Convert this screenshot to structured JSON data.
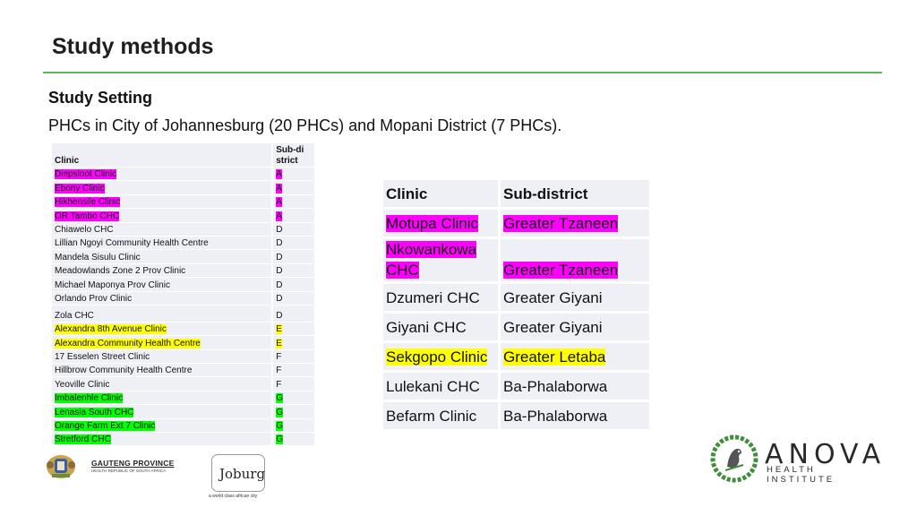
{
  "slide": {
    "title": "Study methods",
    "subheading": "Study Setting",
    "description": "PHCs in City of Johannesburg (20 PHCs) and Mopani District (7 PHCs)."
  },
  "colors": {
    "rule": "#5cb85c",
    "magenta": "#ff00ff",
    "yellow": "#ffff00",
    "green": "#00ff00",
    "table_bg": "#eef0f6"
  },
  "jhb_table": {
    "headers": {
      "clinic": "Clinic",
      "sub_district": "Sub-district"
    },
    "rows": [
      {
        "clinic": "Diepsloot Clinic",
        "sub": "A",
        "hl": "magenta"
      },
      {
        "clinic": "Ebony Clinic",
        "sub": "A",
        "hl": "magenta"
      },
      {
        "clinic": "Hikhensile Clinic",
        "sub": "A",
        "hl": "magenta"
      },
      {
        "clinic": "OR Tambo CHC",
        "sub": "A",
        "hl": "magenta"
      },
      {
        "clinic": "Chiawelo CHC",
        "sub": "D",
        "hl": ""
      },
      {
        "clinic": "Lillian Ngoyi Community Health Centre",
        "sub": "D",
        "hl": ""
      },
      {
        "clinic": "Mandela Sisulu Clinic",
        "sub": "D",
        "hl": ""
      },
      {
        "clinic": "Meadowlands Zone 2 Prov Clinic",
        "sub": "D",
        "hl": ""
      },
      {
        "clinic": "Michael Maponya Prov Clinic",
        "sub": "D",
        "hl": ""
      },
      {
        "clinic": "Orlando Prov Clinic",
        "sub": "D",
        "hl": ""
      },
      {
        "clinic": "Zola CHC",
        "sub": "D",
        "hl": "",
        "gap": true
      },
      {
        "clinic": "Alexandra 8th Avenue Clinic",
        "sub": "E",
        "hl": "yellow"
      },
      {
        "clinic": "Alexandra Community Health Centre",
        "sub": "E",
        "hl": "yellow"
      },
      {
        "clinic": "17 Esselen Street Clinic",
        "sub": "F",
        "hl": ""
      },
      {
        "clinic": "Hillbrow Community Health Centre",
        "sub": "F",
        "hl": ""
      },
      {
        "clinic": "Yeoville Clinic",
        "sub": "F",
        "hl": ""
      },
      {
        "clinic": "Imbalenhle Clinic",
        "sub": "G",
        "hl": "green"
      },
      {
        "clinic": "Lenasia South CHC",
        "sub": "G",
        "hl": "green"
      },
      {
        "clinic": "Orange Farm Ext 7 Clinic",
        "sub": "G",
        "hl": "green"
      },
      {
        "clinic": "Stretford CHC",
        "sub": "G",
        "hl": "green"
      }
    ]
  },
  "mopani_table": {
    "headers": {
      "clinic": "Clinic",
      "sub_district": "Sub-district"
    },
    "rows": [
      {
        "clinic": "Motupa Clinic",
        "sub": "Greater Tzaneen",
        "hl": "magenta"
      },
      {
        "clinic": "Nkowankowa CHC",
        "sub": "Greater Tzaneen",
        "hl": "magenta",
        "tall": true
      },
      {
        "clinic": "Dzumeri CHC",
        "sub": "Greater Giyani",
        "hl": ""
      },
      {
        "clinic": "Giyani CHC",
        "sub": "Greater Giyani",
        "hl": ""
      },
      {
        "clinic": "Sekgopo Clinic",
        "sub": "Greater Letaba",
        "hl": "yellow"
      },
      {
        "clinic": "Lulekani CHC",
        "sub": "Ba-Phalaborwa",
        "hl": ""
      },
      {
        "clinic": "Befarm Clinic",
        "sub": "Ba-Phalaborwa",
        "hl": ""
      }
    ]
  },
  "logos": {
    "gauteng_name": "GAUTENG PROVINCE",
    "gauteng_sub": "HEALTH  REPUBLIC OF SOUTH AFRICA",
    "joburg_name": "Joburg",
    "joburg_tagline": "a world class african city",
    "anova_name": "ANOVA",
    "anova_sub": "HEALTH INSTITUTE"
  }
}
